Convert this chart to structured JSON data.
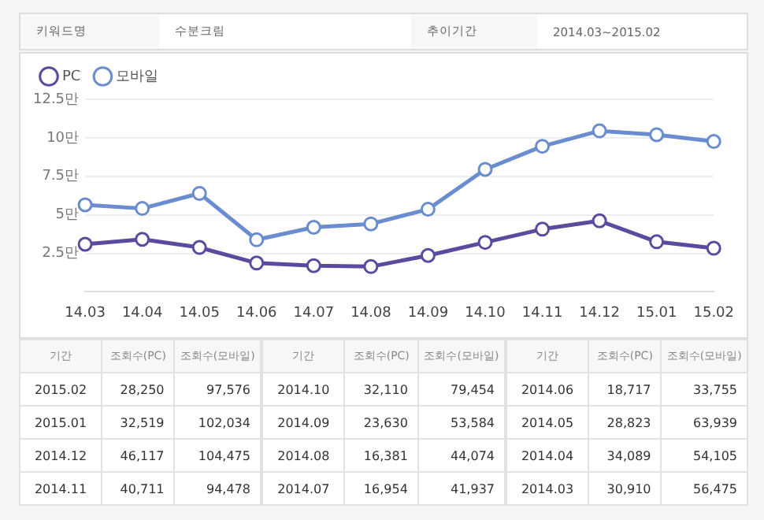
{
  "chart_data": {
    "type": "line",
    "categories": [
      "14.03",
      "14.04",
      "14.05",
      "14.06",
      "14.07",
      "14.08",
      "14.09",
      "14.10",
      "14.11",
      "14.12",
      "15.01",
      "15.02"
    ],
    "series": [
      {
        "name": "PC",
        "color": "#5b4a9e",
        "values": [
          3.09,
          3.41,
          2.88,
          1.87,
          1.7,
          1.64,
          2.36,
          3.21,
          4.07,
          4.61,
          3.25,
          2.83
        ]
      },
      {
        "name": "모바일",
        "color": "#6a8dcf",
        "values": [
          5.65,
          5.41,
          6.39,
          3.38,
          4.19,
          4.41,
          5.36,
          7.95,
          9.45,
          10.45,
          10.2,
          9.76
        ]
      }
    ],
    "ylim": [
      0,
      12.5
    ],
    "yticks": [
      {
        "value": 2.5,
        "label": "2.5만"
      },
      {
        "value": 5,
        "label": "5만"
      },
      {
        "value": 7.5,
        "label": "7.5만"
      },
      {
        "value": 10,
        "label": "10만"
      },
      {
        "value": 12.5,
        "label": "12.5만"
      }
    ],
    "grid": "y",
    "legend": "top left",
    "marker": "circle",
    "line_style": "solid",
    "annotations": [
      "키워드명",
      "수분크림",
      "추이기간",
      "2014.03~2015.02",
      "기간",
      "조회수(PC)",
      "조회수(모바일)",
      "2015.02",
      "28,250",
      "97,576",
      "2015.01",
      "32,519",
      "102,034",
      "2014.12",
      "46,117",
      "104,475",
      "2014.11",
      "40,711",
      "94,478",
      "2014.10",
      "32,110",
      "79,454",
      "2014.09",
      "23,630",
      "53,584",
      "2014.08",
      "16,381",
      "44,074",
      "2014.07",
      "16,954",
      "41,937",
      "2014.06",
      "18,717",
      "33,755",
      "2014.05",
      "28,823",
      "63,939",
      "2014.04",
      "34,089",
      "54,105",
      "2014.03",
      "30,910",
      "56,475"
    ]
  }
}
